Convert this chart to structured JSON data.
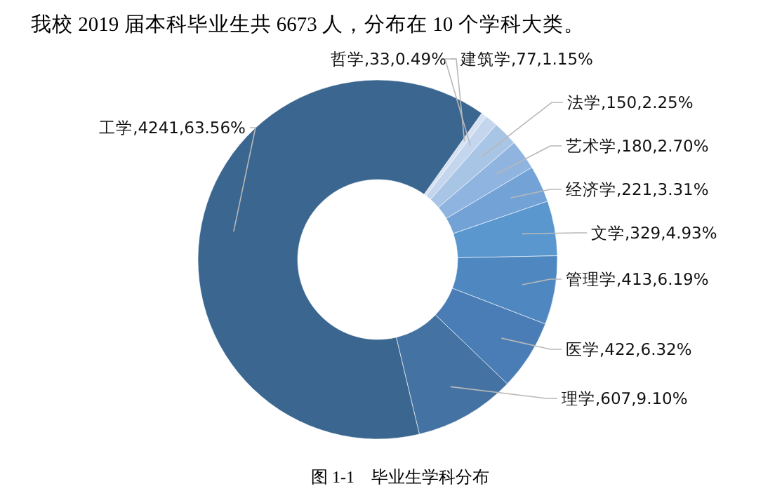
{
  "chart_data": {
    "type": "donut",
    "title": "我校 2019 届本科毕业生共 6673 人，分布在 10 个学科大类。",
    "categories": [
      "哲学",
      "建筑学",
      "法学",
      "艺术学",
      "经济学",
      "文学",
      "管理学",
      "医学",
      "理学",
      "工学"
    ],
    "values": [
      0.49,
      1.15,
      2.25,
      2.7,
      3.31,
      4.93,
      6.19,
      6.32,
      9.1,
      63.56
    ],
    "value_labels": [
      "33,0.49%",
      "77,1.15%",
      "150,2.25%",
      "180,2.70%",
      "221,3.31%",
      "329,4.93%",
      "413,6.19%",
      "422,6.32%",
      "607,9.10%",
      "4241,63.56%"
    ],
    "colors": [
      "#d6e2f2",
      "#c3d6ee",
      "#a9c5e6",
      "#8fb4df",
      "#73a3d6",
      "#5a97cf",
      "#4f88c0",
      "#4a7db5",
      "#4473a3",
      "#3a6690"
    ],
    "annotations": [
      "图 1-1    毕业生学科分布"
    ]
  }
}
